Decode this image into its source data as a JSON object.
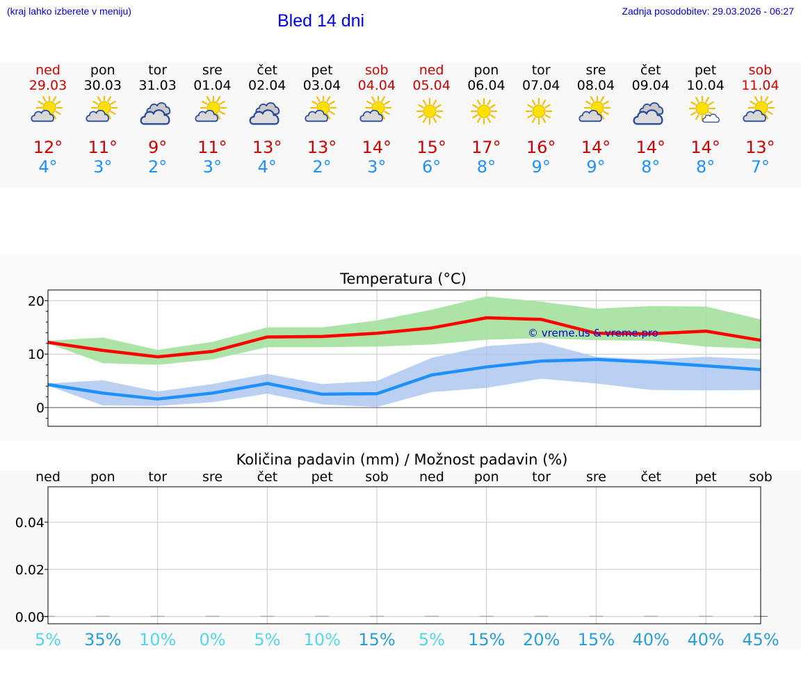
{
  "header": {
    "hint": "(kraj lahko izberete v meniju)",
    "title": "Bled 14 dni",
    "updated": "Zadnja posodobitev: 29.03.2026 - 06:27"
  },
  "days": [
    {
      "name": "ned",
      "date": "29.03",
      "weekend": true,
      "icon": "sun-cloud-icon",
      "max": "12°",
      "min": "4°"
    },
    {
      "name": "pon",
      "date": "30.03",
      "weekend": false,
      "icon": "sun-cloud-icon",
      "max": "11°",
      "min": "3°"
    },
    {
      "name": "tor",
      "date": "31.03",
      "weekend": false,
      "icon": "cloudy-icon",
      "max": "9°",
      "min": "2°"
    },
    {
      "name": "sre",
      "date": "01.04",
      "weekend": false,
      "icon": "sun-cloud-icon",
      "max": "11°",
      "min": "3°"
    },
    {
      "name": "čet",
      "date": "02.04",
      "weekend": false,
      "icon": "cloudy-icon",
      "max": "13°",
      "min": "4°"
    },
    {
      "name": "pet",
      "date": "03.04",
      "weekend": false,
      "icon": "sun-cloud-icon",
      "max": "13°",
      "min": "2°"
    },
    {
      "name": "sob",
      "date": "04.04",
      "weekend": true,
      "icon": "sun-cloud-icon",
      "max": "14°",
      "min": "3°"
    },
    {
      "name": "ned",
      "date": "05.04",
      "weekend": true,
      "icon": "sun-icon",
      "max": "15°",
      "min": "6°"
    },
    {
      "name": "pon",
      "date": "06.04",
      "weekend": false,
      "icon": "sun-icon",
      "max": "17°",
      "min": "8°"
    },
    {
      "name": "tor",
      "date": "07.04",
      "weekend": false,
      "icon": "sun-icon",
      "max": "16°",
      "min": "9°"
    },
    {
      "name": "sre",
      "date": "08.04",
      "weekend": false,
      "icon": "sun-cloud-icon",
      "max": "14°",
      "min": "9°"
    },
    {
      "name": "čet",
      "date": "09.04",
      "weekend": false,
      "icon": "cloudy-icon",
      "max": "14°",
      "min": "8°"
    },
    {
      "name": "pet",
      "date": "10.04",
      "weekend": false,
      "icon": "sun-small-cloud-icon",
      "max": "14°",
      "min": "8°"
    },
    {
      "name": "sob",
      "date": "11.04",
      "weekend": true,
      "icon": "sun-cloud-icon",
      "max": "13°",
      "min": "7°"
    }
  ],
  "colors": {
    "max_line": "#ff0000",
    "max_band": "#a6e3a1",
    "min_line": "#1e90ff",
    "min_band": "#a9c4f0",
    "grid": "#c8c8c8",
    "weekend": "#cc0000",
    "prob_low": "#55d6e6",
    "prob_high": "#2a9fd6"
  },
  "chart_data": [
    {
      "type": "line",
      "title": "Temperatura (°C)",
      "watermark": "© vreme.us & vreme.pro",
      "x": [
        0,
        1,
        2,
        3,
        4,
        5,
        6,
        7,
        8,
        9,
        10,
        11,
        12,
        13
      ],
      "ylim": [
        -3.5,
        22
      ],
      "yticks": [
        0,
        10,
        20
      ],
      "series": [
        {
          "name": "max",
          "values": [
            12.2,
            10.7,
            9.5,
            10.5,
            13.2,
            13.3,
            13.9,
            14.9,
            16.8,
            16.5,
            13.9,
            13.8,
            14.3,
            12.6
          ],
          "band_low": [
            12.0,
            8.3,
            8.0,
            9.0,
            11.3,
            11.3,
            11.4,
            11.8,
            12.7,
            13.0,
            12.6,
            12.5,
            11.4,
            11.0
          ],
          "band_high": [
            12.5,
            13.1,
            10.8,
            12.3,
            15.0,
            15.0,
            16.3,
            18.3,
            20.8,
            19.8,
            18.5,
            19.0,
            18.9,
            16.5
          ]
        },
        {
          "name": "min",
          "values": [
            4.3,
            2.7,
            1.6,
            2.7,
            4.5,
            2.5,
            2.6,
            6.1,
            7.6,
            8.7,
            9.0,
            8.5,
            7.8,
            7.1
          ],
          "band_low": [
            4.1,
            0.4,
            0.3,
            1.0,
            2.6,
            0.6,
            0.1,
            2.9,
            3.7,
            5.4,
            4.5,
            3.3,
            3.2,
            3.3
          ],
          "band_high": [
            4.5,
            5.1,
            3.0,
            4.4,
            6.3,
            4.4,
            5.0,
            9.3,
            11.5,
            12.2,
            9.5,
            9.0,
            9.5,
            9.0
          ]
        }
      ]
    },
    {
      "type": "bar",
      "title": "Količina padavin (mm) / Možnost padavin (%)",
      "categories": [
        "ned",
        "pon",
        "tor",
        "sre",
        "čet",
        "pet",
        "sob",
        "ned",
        "pon",
        "tor",
        "sre",
        "čet",
        "pet",
        "sob"
      ],
      "values": [
        0,
        0,
        0,
        0,
        0,
        0,
        0,
        0,
        0,
        0,
        0,
        0,
        0,
        0
      ],
      "ylim": [
        -0.003,
        0.055
      ],
      "yticks": [
        "0.00",
        "0.02",
        "0.04"
      ],
      "probability": [
        "5%",
        "35%",
        "10%",
        "0%",
        "5%",
        "10%",
        "15%",
        "5%",
        "15%",
        "20%",
        "15%",
        "40%",
        "40%",
        "45%"
      ]
    }
  ]
}
